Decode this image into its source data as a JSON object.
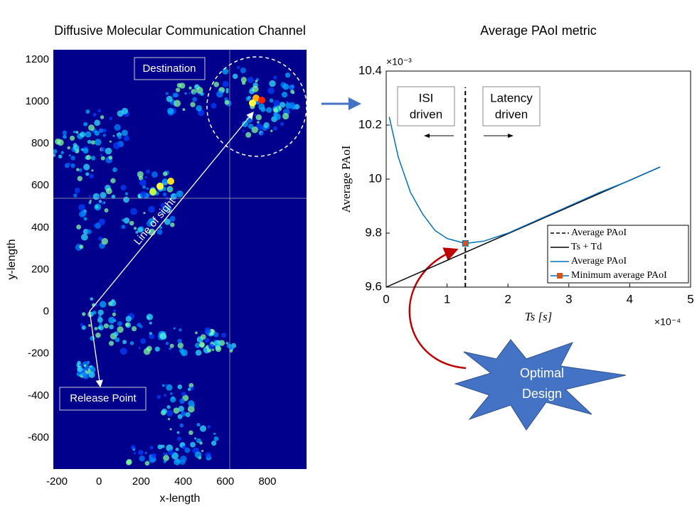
{
  "chart_data": [
    {
      "type": "heatmap",
      "title": "Diffusive Molecular Communication Channel",
      "xlabel": "x-length",
      "ylabel": "y-length",
      "xlim": [
        -217,
        986
      ],
      "ylim": [
        -749,
        1247
      ],
      "xticks": [
        -200,
        0,
        200,
        400,
        600,
        800
      ],
      "yticks": [
        -600,
        -400,
        -200,
        0,
        200,
        400,
        600,
        800,
        1000,
        1200
      ],
      "background": "#00008c",
      "annotations": {
        "destination": "Destination",
        "release": "Release Point",
        "line_of_sight": "Line of sight"
      }
    },
    {
      "type": "line",
      "title": "Average PAoI metric",
      "xlabel": "Ts [s]",
      "ylabel": "Average PAoI",
      "x_exponent": "×10⁻⁴",
      "y_exponent": "×10⁻³",
      "xlim": [
        0,
        5
      ],
      "ylim": [
        9.6,
        10.4
      ],
      "xticks": [
        0,
        1,
        2,
        3,
        4,
        5
      ],
      "yticks": [
        9.6,
        9.8,
        10,
        10.2,
        10.4
      ],
      "legend": "lower right",
      "series": [
        {
          "name": "Average PAoI",
          "style": "dashed",
          "color": "#000000",
          "x": [
            1.3,
            1.3
          ],
          "values": [
            9.6,
            10.34
          ]
        },
        {
          "name": "Ts + Td",
          "style": "solid",
          "color": "#000000",
          "x": [
            0,
            4.5
          ],
          "values": [
            9.6,
            10.045
          ]
        },
        {
          "name": "Average PAoI",
          "style": "solid",
          "color": "#0072bd",
          "x": [
            0.05,
            0.2,
            0.4,
            0.6,
            0.8,
            1.0,
            1.3,
            1.6,
            2.0,
            2.5,
            3.0,
            3.5,
            4.0,
            4.5
          ],
          "values": [
            10.23,
            10.08,
            9.95,
            9.87,
            9.81,
            9.78,
            9.762,
            9.77,
            9.8,
            9.85,
            9.9,
            9.95,
            9.995,
            10.045
          ]
        },
        {
          "name": "Minimum average PAoI",
          "style": "marker",
          "color": "#d95319",
          "x": [
            1.3
          ],
          "values": [
            9.762
          ]
        }
      ],
      "annotations": {
        "isi": [
          "ISI",
          "driven"
        ],
        "latency": [
          "Latency",
          "driven"
        ],
        "optimal": [
          "Optimal",
          "Design"
        ]
      }
    }
  ]
}
